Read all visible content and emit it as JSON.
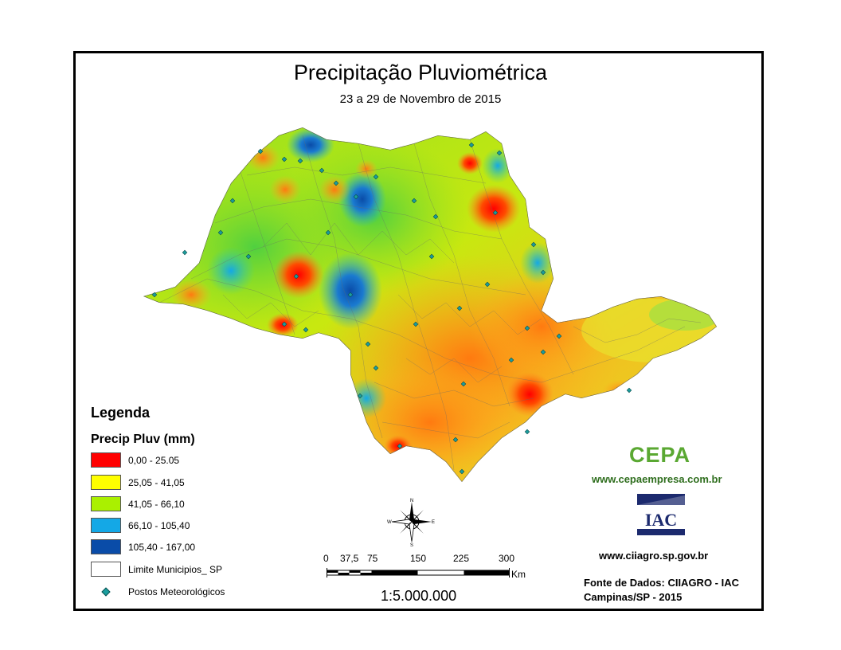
{
  "title": "Precipitação Pluviométrica",
  "subtitle": "23 a 29 de Novembro de 2015",
  "legend": {
    "title": "Legenda",
    "subtitle": "Precip Pluv (mm)",
    "classes": [
      {
        "label": "0,00 - 25.05",
        "color": "#ff0000"
      },
      {
        "label": "25,05 - 41,05",
        "color": "#ffff00"
      },
      {
        "label": "41,05 - 66,10",
        "color": "#aaf000"
      },
      {
        "label": "66,10 - 105,40",
        "color": "#14a8e6"
      },
      {
        "label": "105,40 - 167,00",
        "color": "#0a4ca8"
      }
    ],
    "boundary_label": "Limite Municipios_ SP",
    "stations_label": "Postos Meteorológicos",
    "station_color": "#1b9e9e"
  },
  "compass": {
    "n": "N",
    "s": "S",
    "e": "E",
    "w": "W"
  },
  "scale": {
    "ticks": [
      "0",
      "37,5",
      "75",
      "150",
      "225",
      "300"
    ],
    "unit": "Km",
    "ratio": "1:5.000.000"
  },
  "credits": {
    "cepa_logo": "CEPA",
    "cepa_url": "www.cepaempresa.com.br",
    "iac_logo": "IAC",
    "iac_url": "www.ciiagro.sp.gov.br",
    "source_line1": "Fonte de Dados: CIIAGRO - IAC",
    "source_line2": "Campinas/SP - 2015"
  }
}
